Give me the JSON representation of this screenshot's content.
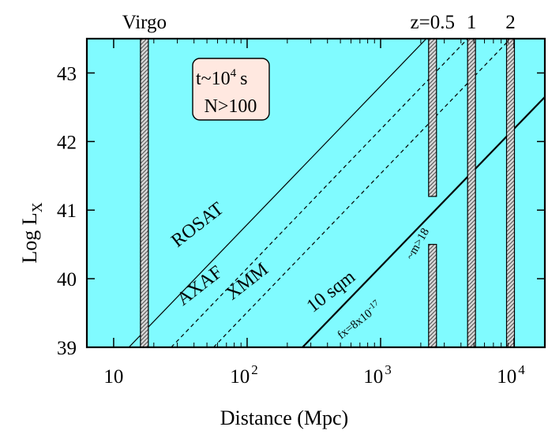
{
  "chart_data": {
    "type": "line",
    "xlabel": "Distance (Mpc)",
    "ylabel_main": "Log L",
    "ylabel_sub": "X",
    "xscale": "log",
    "xlim": [
      6.3,
      17000
    ],
    "ylim": [
      39.0,
      43.5
    ],
    "x_ticks": [
      {
        "value": 10,
        "base": "10",
        "exp": ""
      },
      {
        "value": 100,
        "base": "10",
        "exp": "2"
      },
      {
        "value": 1000,
        "base": "10",
        "exp": "3"
      },
      {
        "value": 10000,
        "base": "10",
        "exp": "4"
      }
    ],
    "y_ticks": [
      {
        "value": 39,
        "label": "39"
      },
      {
        "value": 40,
        "label": "40"
      },
      {
        "value": 41,
        "label": "41"
      },
      {
        "value": 42,
        "label": "42"
      },
      {
        "value": 43,
        "label": "43"
      }
    ],
    "background_color": "#80fbff",
    "series": [
      {
        "name": "ROSAT",
        "style": "solid",
        "width": 1.2,
        "x": [
          13,
          2200
        ],
        "y": [
          39.0,
          43.5
        ]
      },
      {
        "name": "AXAF",
        "style": "dashed",
        "width": 1.2,
        "x": [
          27,
          4500
        ],
        "y": [
          39.0,
          43.5
        ]
      },
      {
        "name": "XMM",
        "style": "dashed",
        "width": 1.2,
        "x": [
          56,
          9400
        ],
        "y": [
          39.0,
          43.5
        ]
      },
      {
        "name": "10 sqm",
        "style": "solid",
        "width": 2.2,
        "x": [
          260,
          17000
        ],
        "y": [
          39.0,
          42.65
        ]
      }
    ],
    "line_labels": [
      {
        "text": "ROSAT",
        "x": 30,
        "y": 40.45,
        "angle": -38
      },
      {
        "text": "AXAF",
        "x": 33,
        "y": 39.6,
        "angle": -38
      },
      {
        "text": "XMM",
        "x": 77,
        "y": 39.68,
        "angle": -38
      },
      {
        "text": "10 sqm",
        "x": 310,
        "y": 39.5,
        "angle": -38
      }
    ],
    "vertical_bands": [
      {
        "label": "Virgo",
        "x": 17
      },
      {
        "label": "z=0.5",
        "x": 2450,
        "gap": [
          40.5,
          41.2
        ]
      },
      {
        "label": "1",
        "x": 4800
      },
      {
        "label": "2",
        "x": 9400
      }
    ],
    "annotations": {
      "box_line1": "t~10",
      "box_exp": "4",
      "box_unit": "s",
      "box_line2": "N>100",
      "flux_label": "fx=8x10",
      "flux_exp": "-17",
      "mag_label": "~m>18"
    }
  }
}
